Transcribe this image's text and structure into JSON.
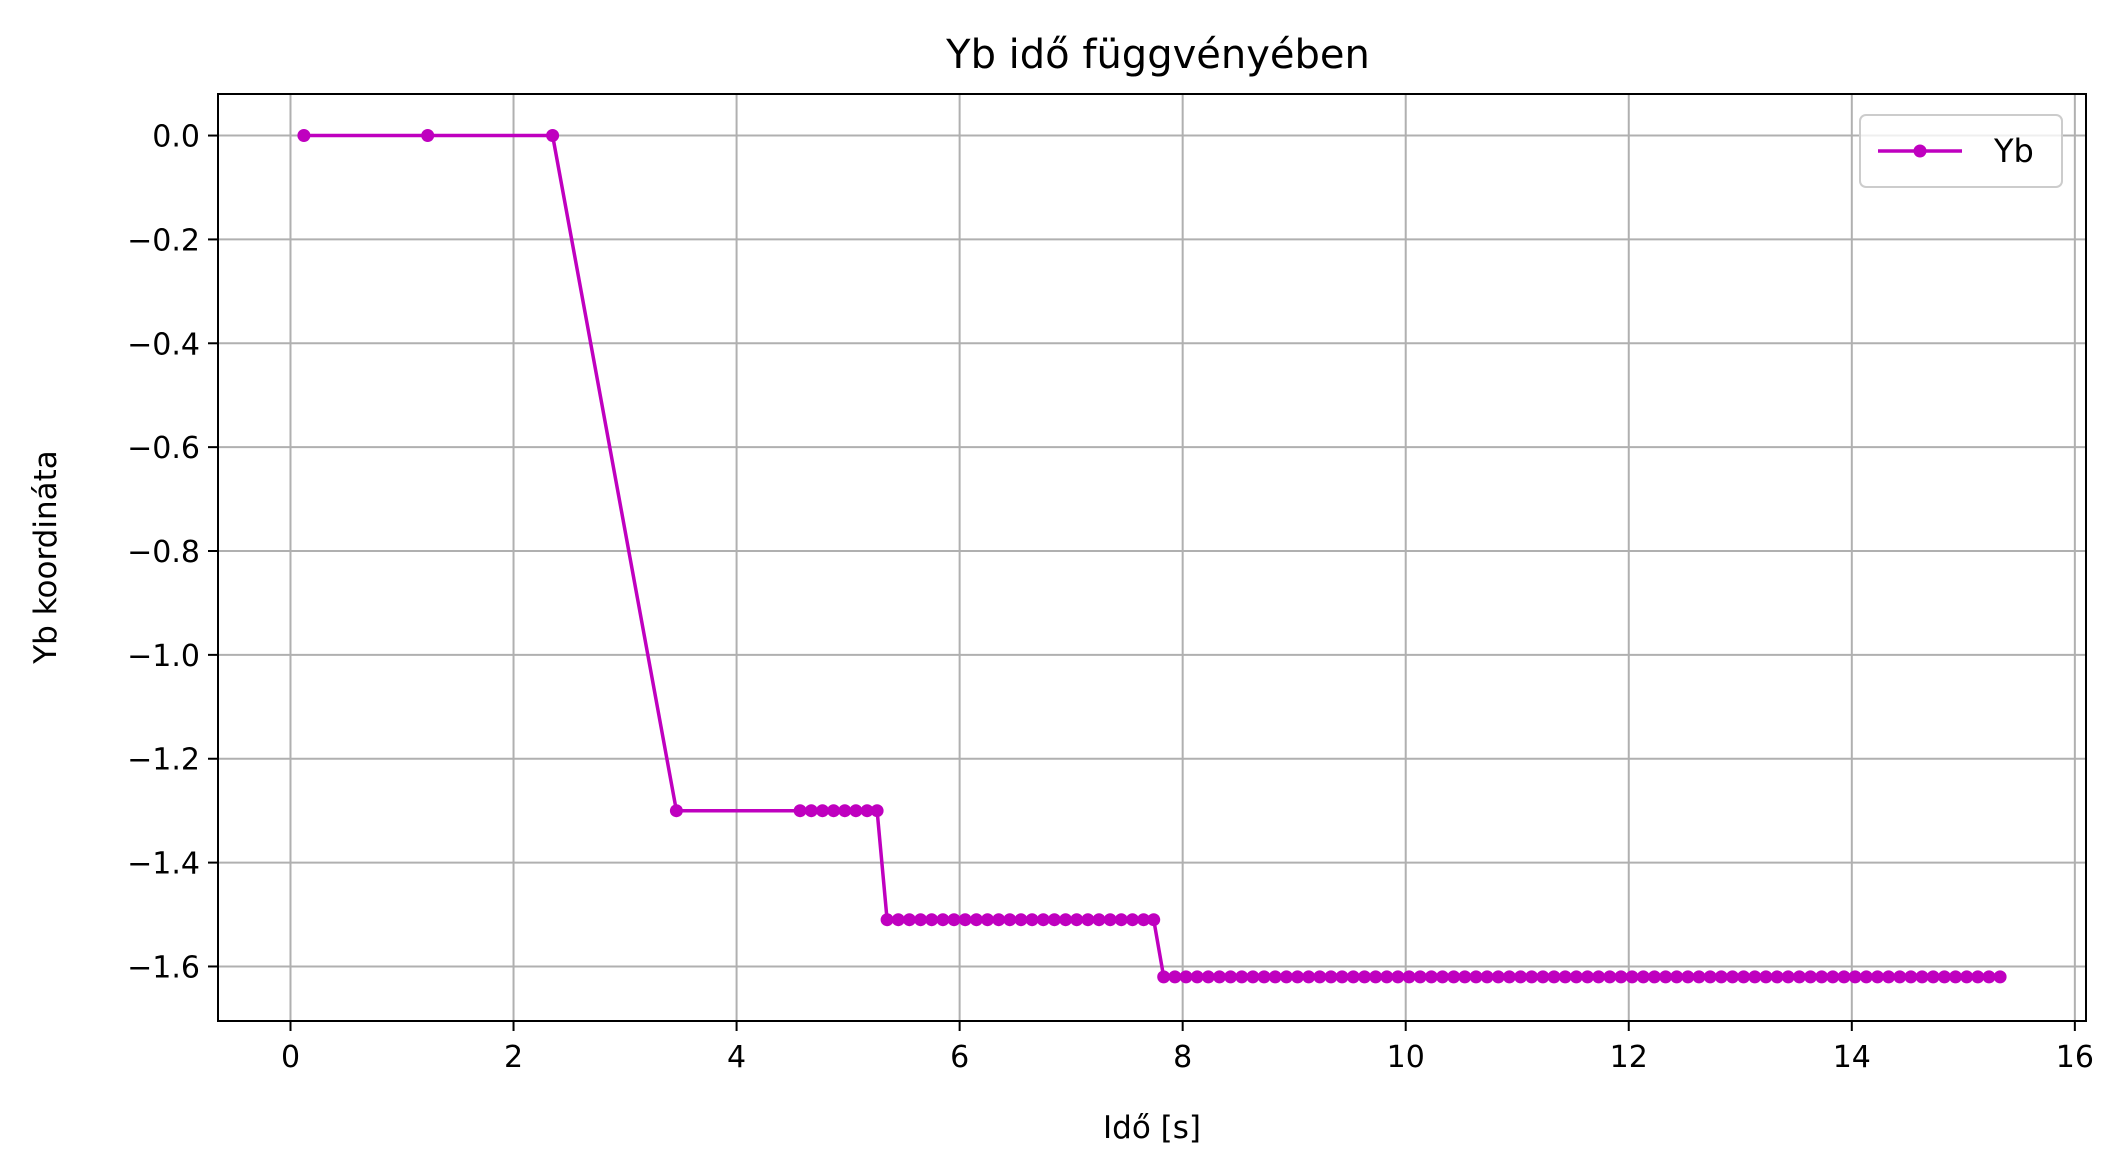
{
  "chart_data": {
    "type": "line",
    "title": "Yb idő függvényében",
    "xlabel": "Idő [s]",
    "ylabel": "Yb koordináta",
    "xlim": [
      -0.65,
      16.1
    ],
    "ylim": [
      -1.705,
      0.08
    ],
    "xticks": [
      0,
      2,
      4,
      6,
      8,
      10,
      12,
      14,
      16
    ],
    "xtick_labels": [
      "0",
      "2",
      "4",
      "6",
      "8",
      "10",
      "12",
      "14",
      "16"
    ],
    "yticks": [
      0.0,
      -0.2,
      -0.4,
      -0.6,
      -0.8,
      -1.0,
      -1.2,
      -1.4,
      -1.6
    ],
    "ytick_labels": [
      "0.0",
      "−0.2",
      "−0.4",
      "−0.6",
      "−0.8",
      "−1.0",
      "−1.2",
      "−1.4",
      "−1.6"
    ],
    "grid": true,
    "legend_position": "top-right",
    "colors": {
      "series": "#bf00bf",
      "grid": "#b0b0b0",
      "frame": "#000000"
    },
    "series": [
      {
        "name": "Yb",
        "x": [
          0.12,
          1.23,
          2.35,
          3.46,
          4.57,
          4.67,
          4.77,
          4.87,
          4.97,
          5.07,
          5.17,
          5.26,
          5.35,
          5.45,
          5.55,
          5.65,
          5.75,
          5.85,
          5.95,
          6.05,
          6.15,
          6.25,
          6.35,
          6.45,
          6.55,
          6.65,
          6.75,
          6.85,
          6.95,
          7.05,
          7.15,
          7.25,
          7.35,
          7.45,
          7.55,
          7.65,
          7.74,
          7.83,
          7.93,
          8.03,
          8.13,
          8.23,
          8.33,
          8.43,
          8.53,
          8.63,
          8.73,
          8.83,
          8.93,
          9.03,
          9.13,
          9.23,
          9.33,
          9.43,
          9.53,
          9.63,
          9.73,
          9.83,
          9.93,
          10.03,
          10.13,
          10.23,
          10.33,
          10.43,
          10.53,
          10.63,
          10.73,
          10.83,
          10.93,
          11.03,
          11.13,
          11.23,
          11.33,
          11.43,
          11.53,
          11.63,
          11.73,
          11.83,
          11.93,
          12.03,
          12.13,
          12.23,
          12.33,
          12.43,
          12.53,
          12.63,
          12.73,
          12.83,
          12.93,
          13.03,
          13.13,
          13.23,
          13.33,
          13.43,
          13.53,
          13.63,
          13.73,
          13.83,
          13.93,
          14.03,
          14.13,
          14.23,
          14.33,
          14.43,
          14.53,
          14.63,
          14.73,
          14.83,
          14.93,
          15.03,
          15.13,
          15.23,
          15.33
        ],
        "values": [
          0.0,
          0.0,
          0.0,
          -1.3,
          -1.3,
          -1.3,
          -1.3,
          -1.3,
          -1.3,
          -1.3,
          -1.3,
          -1.3,
          -1.51,
          -1.51,
          -1.51,
          -1.51,
          -1.51,
          -1.51,
          -1.51,
          -1.51,
          -1.51,
          -1.51,
          -1.51,
          -1.51,
          -1.51,
          -1.51,
          -1.51,
          -1.51,
          -1.51,
          -1.51,
          -1.51,
          -1.51,
          -1.51,
          -1.51,
          -1.51,
          -1.51,
          -1.51,
          -1.62,
          -1.62,
          -1.62,
          -1.62,
          -1.62,
          -1.62,
          -1.62,
          -1.62,
          -1.62,
          -1.62,
          -1.62,
          -1.62,
          -1.62,
          -1.62,
          -1.62,
          -1.62,
          -1.62,
          -1.62,
          -1.62,
          -1.62,
          -1.62,
          -1.62,
          -1.62,
          -1.62,
          -1.62,
          -1.62,
          -1.62,
          -1.62,
          -1.62,
          -1.62,
          -1.62,
          -1.62,
          -1.62,
          -1.62,
          -1.62,
          -1.62,
          -1.62,
          -1.62,
          -1.62,
          -1.62,
          -1.62,
          -1.62,
          -1.62,
          -1.62,
          -1.62,
          -1.62,
          -1.62,
          -1.62,
          -1.62,
          -1.62,
          -1.62,
          -1.62,
          -1.62,
          -1.62,
          -1.62,
          -1.62,
          -1.62,
          -1.62,
          -1.62,
          -1.62,
          -1.62,
          -1.62,
          -1.62,
          -1.62,
          -1.62,
          -1.62,
          -1.62,
          -1.62,
          -1.62,
          -1.62,
          -1.62,
          -1.62,
          -1.62,
          -1.62,
          -1.62,
          -1.62
        ]
      }
    ]
  }
}
